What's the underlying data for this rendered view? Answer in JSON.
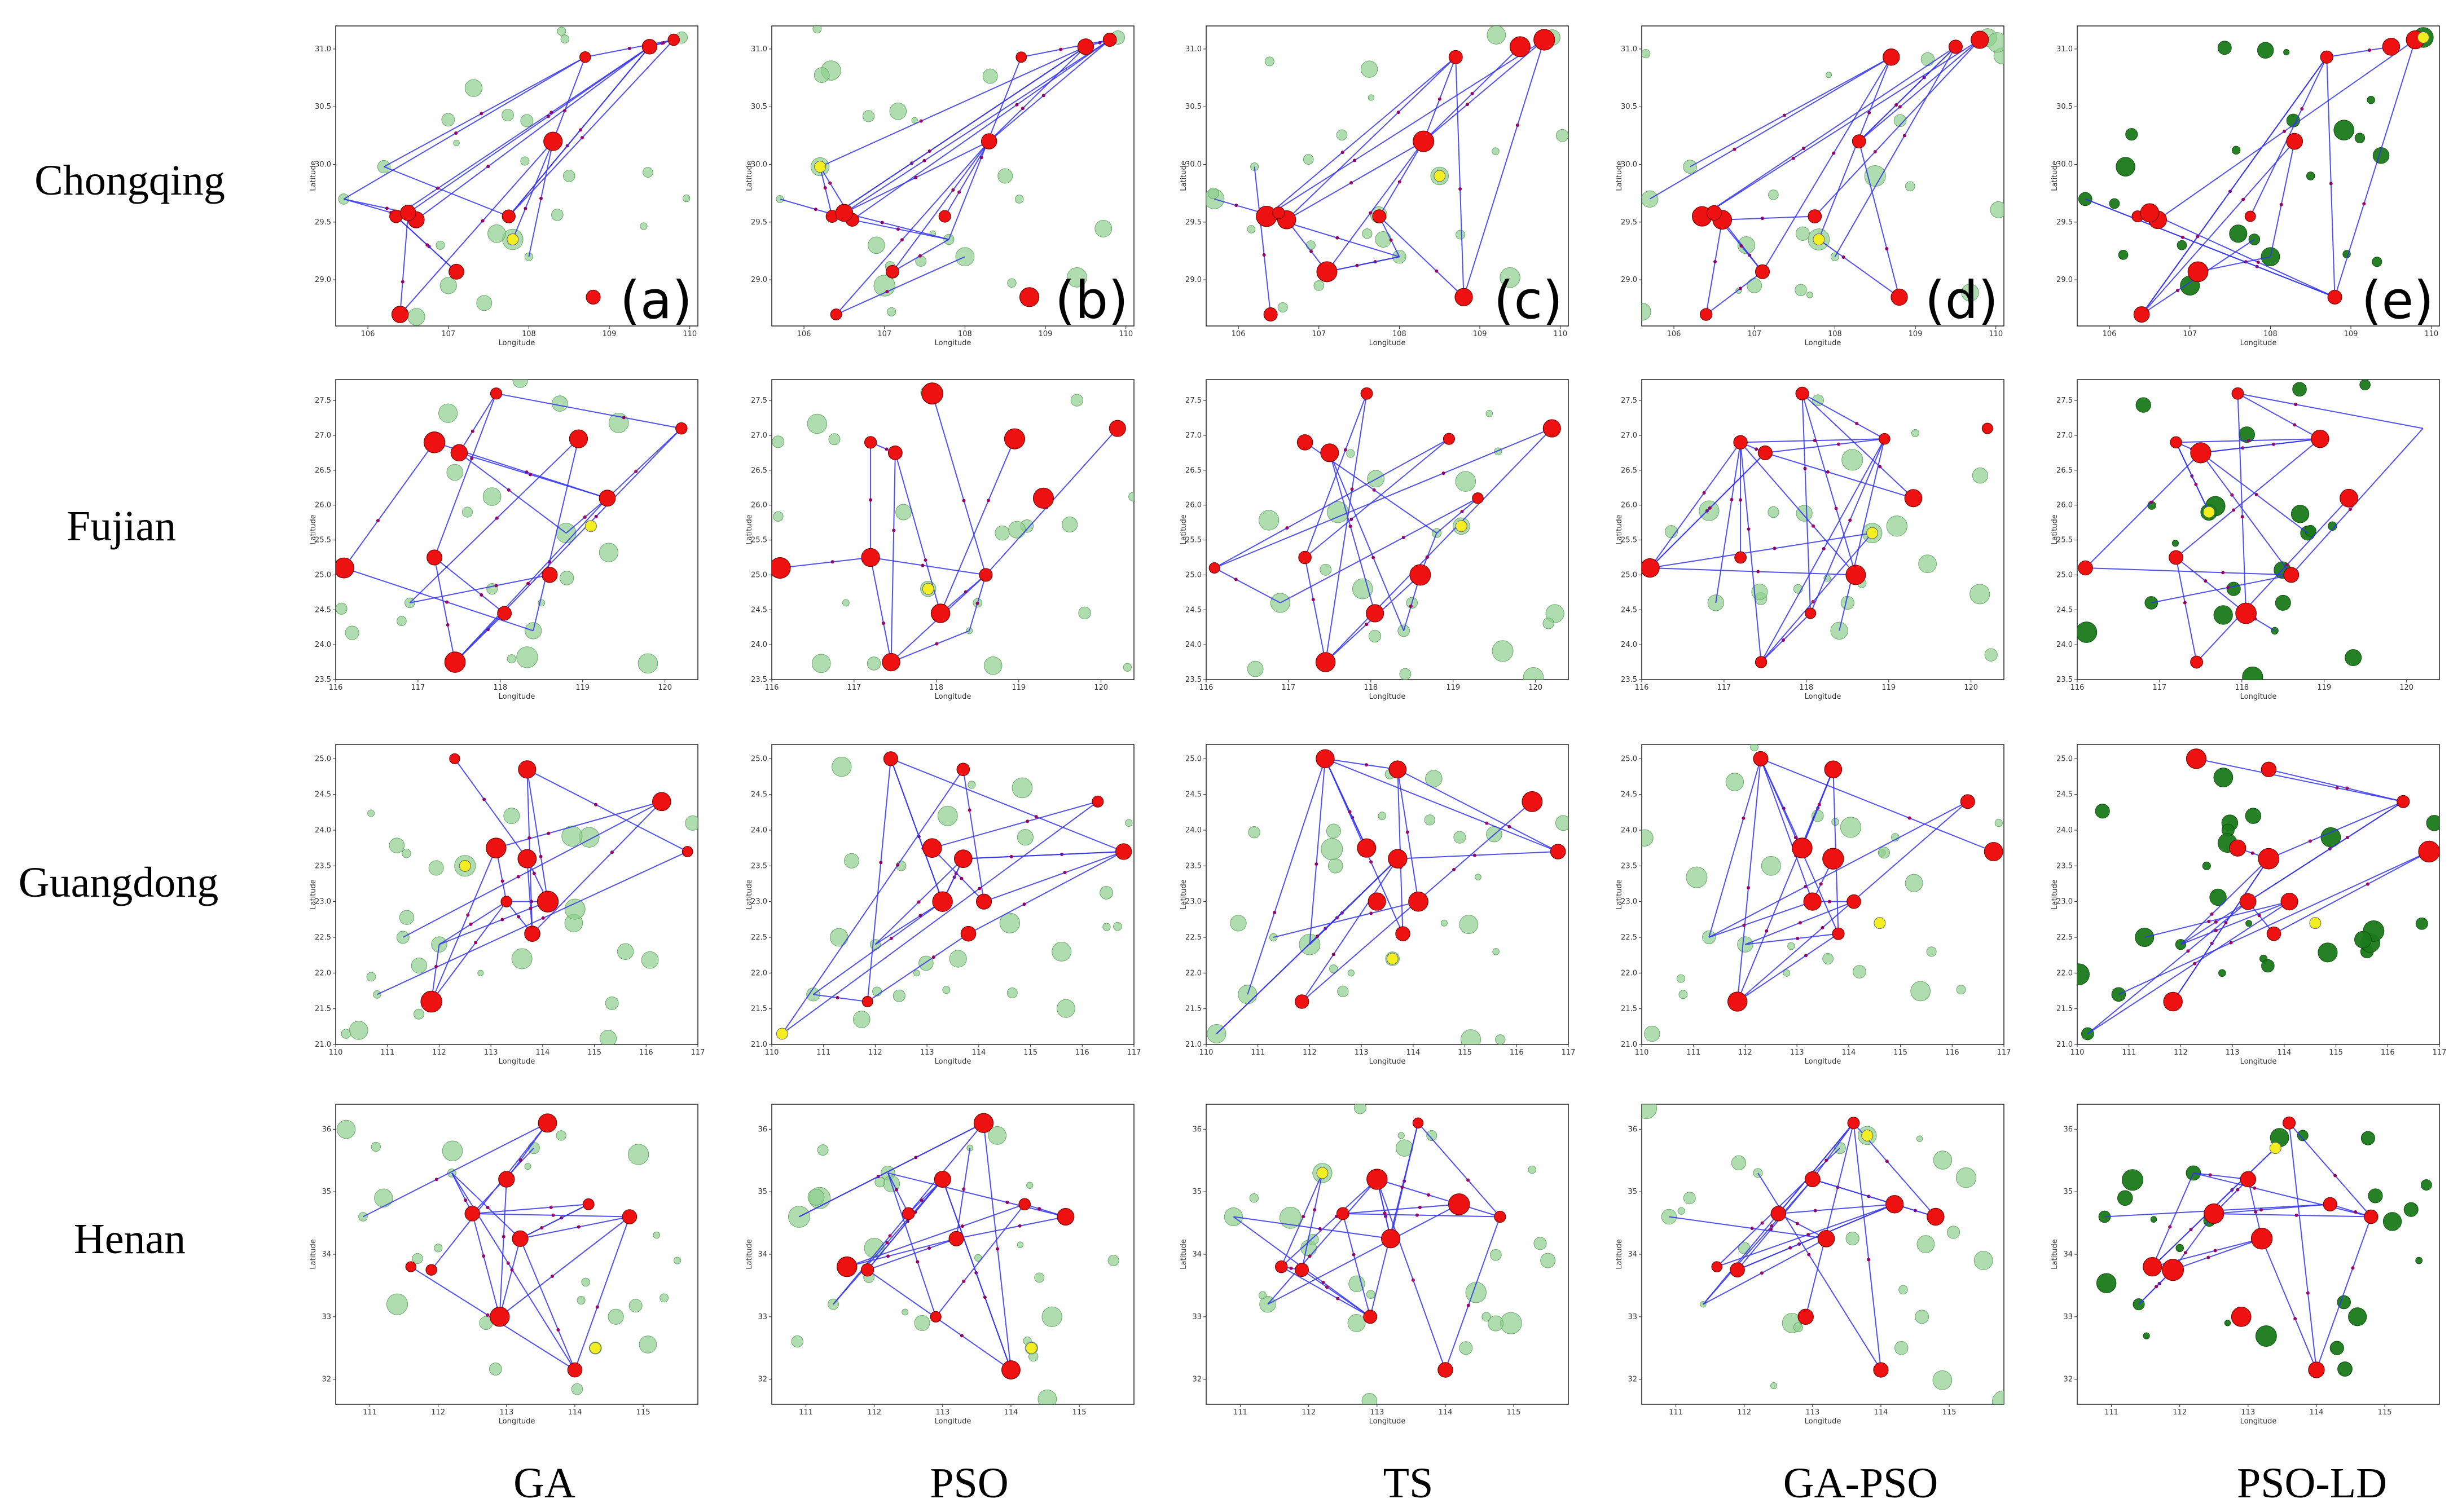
{
  "figure": {
    "rows": [
      "Chongqing",
      "Fujian",
      "Guangdong",
      "Henan"
    ],
    "columns": [
      "GA",
      "PSO",
      "TS",
      "GA-PSO",
      "PSO-LD"
    ],
    "panel_tags": [
      "(a)",
      "(b)",
      "(c)",
      "(d)",
      "(e)"
    ],
    "axis_labels": {
      "x": "Longitude",
      "y": "Latitude"
    },
    "colors": {
      "route": "#3333ee",
      "center": "#ee1111",
      "candidate_light": "#8fcf8f",
      "candidate_dark": "#1a7a1a",
      "highlight": "#f2ee22",
      "midpoint": "#990066"
    }
  },
  "chart_data": [
    {
      "type": "scatter",
      "region": "Chongqing",
      "xlabel": "Longitude",
      "ylabel": "Latitude",
      "xlim": [
        105.6,
        110.1
      ],
      "ylim": [
        28.6,
        31.2
      ],
      "x_ticks": [
        106,
        107,
        108,
        109,
        110
      ],
      "y_ticks": [
        29.0,
        29.5,
        30.0,
        30.5,
        31.0
      ],
      "centers": [
        [
          109.8,
          31.08
        ],
        [
          109.5,
          31.02
        ],
        [
          108.7,
          30.93
        ],
        [
          106.35,
          29.55
        ],
        [
          106.6,
          29.52
        ],
        [
          107.1,
          29.07
        ],
        [
          108.8,
          28.85
        ],
        [
          106.4,
          28.7
        ],
        [
          107.75,
          29.55
        ],
        [
          108.3,
          30.2
        ],
        [
          106.5,
          29.58
        ]
      ],
      "candidates": [
        [
          105.7,
          29.7
        ],
        [
          106.2,
          29.98
        ],
        [
          107.8,
          29.35
        ],
        [
          108.0,
          29.2
        ],
        [
          107.0,
          28.95
        ],
        [
          107.6,
          29.4
        ],
        [
          109.9,
          31.1
        ],
        [
          108.5,
          29.9
        ],
        [
          106.9,
          29.3
        ]
      ]
    },
    {
      "type": "scatter",
      "region": "Fujian",
      "xlabel": "Longitude",
      "ylabel": "Latitude",
      "xlim": [
        116.0,
        120.4
      ],
      "ylim": [
        23.5,
        27.8
      ],
      "x_ticks": [
        116,
        117,
        118,
        119,
        120
      ],
      "y_ticks": [
        23.5,
        24.0,
        24.5,
        25.0,
        25.5,
        26.0,
        26.5,
        27.0,
        27.5
      ],
      "centers": [
        [
          117.95,
          27.6
        ],
        [
          120.2,
          27.1
        ],
        [
          117.2,
          26.9
        ],
        [
          118.95,
          26.95
        ],
        [
          117.5,
          26.75
        ],
        [
          119.3,
          26.1
        ],
        [
          118.6,
          25.0
        ],
        [
          118.05,
          24.45
        ],
        [
          117.45,
          23.75
        ],
        [
          116.1,
          25.1
        ],
        [
          117.2,
          25.25
        ]
      ],
      "candidates": [
        [
          116.9,
          24.6
        ],
        [
          117.6,
          25.9
        ],
        [
          118.4,
          24.2
        ],
        [
          118.8,
          25.6
        ],
        [
          117.9,
          24.8
        ],
        [
          119.1,
          25.7
        ],
        [
          118.5,
          24.6
        ]
      ]
    },
    {
      "type": "scatter",
      "region": "Guangdong",
      "xlabel": "Longitude",
      "ylabel": "Latitude",
      "xlim": [
        110.0,
        117.0
      ],
      "ylim": [
        21.0,
        25.2
      ],
      "x_ticks": [
        110,
        111,
        112,
        113,
        114,
        115,
        116,
        117
      ],
      "y_ticks": [
        21.0,
        21.5,
        22.0,
        22.5,
        23.0,
        23.5,
        24.0,
        24.5,
        25.0
      ],
      "centers": [
        [
          113.3,
          23.0
        ],
        [
          113.1,
          23.75
        ],
        [
          113.7,
          23.6
        ],
        [
          114.1,
          23.0
        ],
        [
          111.85,
          21.6
        ],
        [
          116.3,
          24.4
        ],
        [
          116.8,
          23.7
        ],
        [
          112.3,
          25.0
        ],
        [
          113.7,
          24.85
        ],
        [
          113.8,
          22.55
        ]
      ],
      "candidates": [
        [
          110.2,
          21.15
        ],
        [
          110.8,
          21.7
        ],
        [
          111.3,
          22.5
        ],
        [
          112.0,
          22.4
        ],
        [
          112.5,
          23.5
        ],
        [
          113.4,
          24.2
        ],
        [
          114.6,
          22.7
        ],
        [
          115.6,
          22.3
        ],
        [
          116.9,
          24.1
        ],
        [
          112.8,
          22.0
        ],
        [
          114.9,
          23.9
        ],
        [
          113.6,
          22.2
        ]
      ]
    },
    {
      "type": "scatter",
      "region": "Henan",
      "xlabel": "Longitude",
      "ylabel": "Latitude",
      "xlim": [
        110.5,
        115.8
      ],
      "ylim": [
        31.6,
        36.4
      ],
      "x_ticks": [
        111,
        112,
        113,
        114,
        115
      ],
      "y_ticks": [
        32,
        33,
        34,
        35,
        36
      ],
      "centers": [
        [
          113.6,
          36.1
        ],
        [
          114.2,
          34.8
        ],
        [
          112.5,
          34.65
        ],
        [
          113.2,
          34.25
        ],
        [
          111.9,
          33.75
        ],
        [
          114.0,
          32.15
        ],
        [
          113.0,
          35.2
        ],
        [
          114.8,
          34.6
        ],
        [
          112.9,
          33.0
        ],
        [
          111.6,
          33.8
        ]
      ],
      "candidates": [
        [
          110.9,
          34.6
        ],
        [
          111.4,
          33.2
        ],
        [
          112.2,
          35.3
        ],
        [
          113.4,
          35.7
        ],
        [
          114.6,
          33.0
        ],
        [
          115.5,
          33.9
        ],
        [
          112.7,
          32.9
        ],
        [
          111.2,
          34.9
        ],
        [
          113.8,
          35.9
        ],
        [
          114.3,
          32.5
        ],
        [
          112.0,
          34.1
        ]
      ]
    }
  ]
}
